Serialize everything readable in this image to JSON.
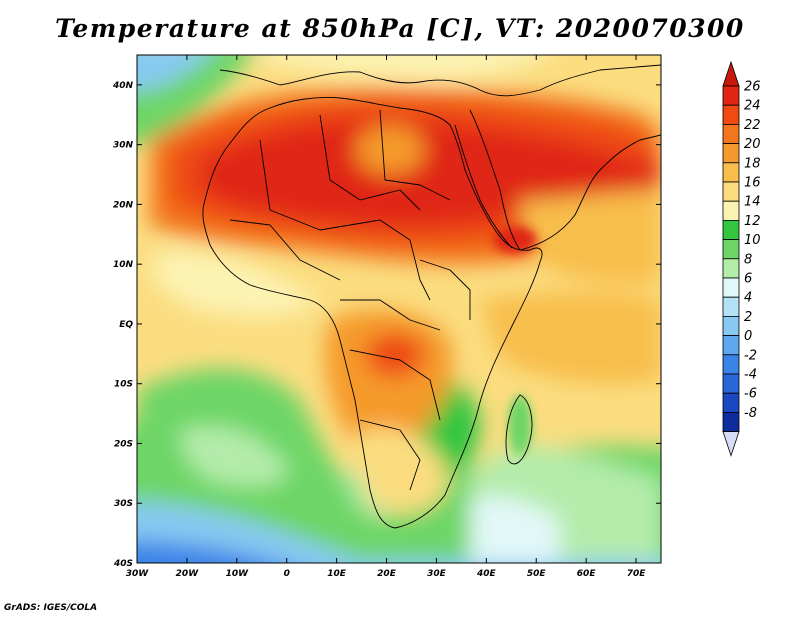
{
  "title": "Temperature at 850hPa [C], VT: 2020070300",
  "credit": "GrADS: IGES/COLA",
  "map": {
    "lon_range": [
      -30,
      75
    ],
    "lat_range": [
      -40,
      45
    ],
    "lon_ticks": [
      {
        "v": -30,
        "label": "30W"
      },
      {
        "v": -20,
        "label": "20W"
      },
      {
        "v": -10,
        "label": "10W"
      },
      {
        "v": 0,
        "label": "0"
      },
      {
        "v": 10,
        "label": "10E"
      },
      {
        "v": 20,
        "label": "20E"
      },
      {
        "v": 30,
        "label": "30E"
      },
      {
        "v": 40,
        "label": "40E"
      },
      {
        "v": 50,
        "label": "50E"
      },
      {
        "v": 60,
        "label": "60E"
      },
      {
        "v": 70,
        "label": "70E"
      }
    ],
    "lat_ticks": [
      {
        "v": 40,
        "label": "40N"
      },
      {
        "v": 30,
        "label": "30N"
      },
      {
        "v": 20,
        "label": "20N"
      },
      {
        "v": 10,
        "label": "10N"
      },
      {
        "v": 0,
        "label": "EQ"
      },
      {
        "v": -10,
        "label": "10S"
      },
      {
        "v": -20,
        "label": "20S"
      },
      {
        "v": -30,
        "label": "30S"
      },
      {
        "v": -40,
        "label": "40S"
      }
    ]
  },
  "colorbar": {
    "unit": "C",
    "levels": [
      {
        "label": "26",
        "color": "#e02514"
      },
      {
        "label": "24",
        "color": "#ee4a12"
      },
      {
        "label": "22",
        "color": "#f3751e"
      },
      {
        "label": "20",
        "color": "#f59a2c"
      },
      {
        "label": "18",
        "color": "#f8be4c"
      },
      {
        "label": "16",
        "color": "#fbdd80"
      },
      {
        "label": "14",
        "color": "#fcf3b3"
      },
      {
        "label": "12",
        "color": "#33c640"
      },
      {
        "label": "10",
        "color": "#6dd666"
      },
      {
        "label": "8",
        "color": "#b4ecaa"
      },
      {
        "label": "6",
        "color": "#e2f8f8"
      },
      {
        "label": "4",
        "color": "#b3e2f7"
      },
      {
        "label": "2",
        "color": "#87c9f2"
      },
      {
        "label": "0",
        "color": "#5fa8ef"
      },
      {
        "label": "-2",
        "color": "#3a83e7"
      },
      {
        "label": "-4",
        "color": "#2966d8"
      },
      {
        "label": "-6",
        "color": "#1a48c0"
      },
      {
        "label": "-8",
        "color": "#0f2c9c"
      }
    ],
    "top_arrow_color": "#c8180c",
    "bottom_arrow_color": "#d4dcf6"
  }
}
